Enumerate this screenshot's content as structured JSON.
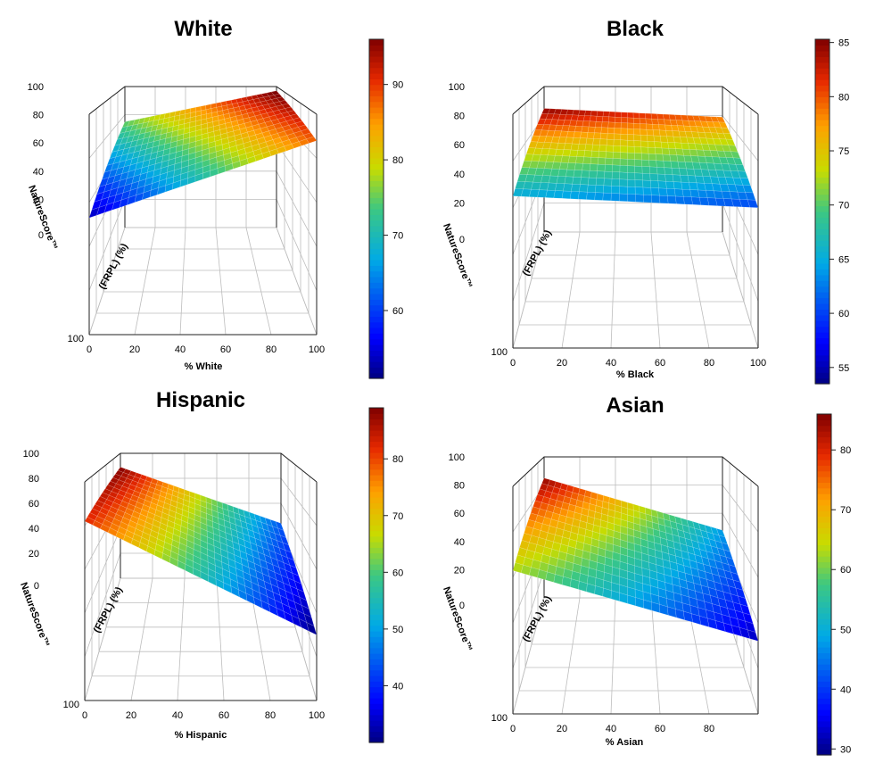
{
  "chart_data": [
    {
      "type": "surface3d",
      "title": "White",
      "xlabel": "% White",
      "ylabel": "(FRPL) (%)",
      "zlabel": "NatureScore™",
      "x_ticks": [
        "0",
        "20",
        "40",
        "60",
        "80",
        "100"
      ],
      "y_ticks": [
        "100"
      ],
      "z_ticks": [
        "0",
        "20",
        "40",
        "60",
        "80",
        "100"
      ],
      "corner_z": {
        "x0_near": 53,
        "x100_near": 88,
        "x0_far": 75,
        "x100_far": 97
      },
      "colorbar": {
        "min": 51,
        "max": 96,
        "ticks": [
          60,
          70,
          80,
          90
        ]
      }
    },
    {
      "type": "surface3d",
      "title": "Black",
      "xlabel": "% Black",
      "ylabel": "(FRPL) (%)",
      "zlabel": "NatureScore™",
      "x_ticks": [
        "0",
        "20",
        "40",
        "60",
        "80",
        "100"
      ],
      "y_ticks": [
        "100"
      ],
      "z_ticks": [
        "0",
        "20",
        "40",
        "60",
        "80",
        "100"
      ],
      "corner_z": {
        "x0_near": 65,
        "x100_near": 60,
        "x0_far": 85,
        "x100_far": 79
      },
      "colorbar": {
        "min": 53.5,
        "max": 85.3,
        "ticks": [
          55,
          60,
          65,
          70,
          75,
          80,
          85
        ]
      }
    },
    {
      "type": "surface3d",
      "title": "Hispanic",
      "xlabel": "% Hispanic",
      "ylabel": "(FRPL) (%)",
      "zlabel": "NatureScore™",
      "x_ticks": [
        "0",
        "20",
        "40",
        "60",
        "80",
        "100"
      ],
      "y_ticks": [
        "100"
      ],
      "z_ticks": [
        "0",
        "20",
        "40",
        "60",
        "80",
        "100"
      ],
      "corner_z": {
        "x0_near": 82,
        "x100_near": 30,
        "x0_far": 89,
        "x100_far": 44
      },
      "colorbar": {
        "min": 30,
        "max": 89,
        "ticks": [
          40,
          50,
          60,
          70,
          80
        ]
      }
    },
    {
      "type": "surface3d",
      "title": "Asian",
      "xlabel": "% Asian",
      "ylabel": "(FRPL) (%)",
      "zlabel": "NatureScore™",
      "x_ticks": [
        "0",
        "20",
        "40",
        "60",
        "80"
      ],
      "y_ticks": [
        "100"
      ],
      "z_ticks": [
        "0",
        "20",
        "40",
        "60",
        "80",
        "100"
      ],
      "corner_z": {
        "x0_near": 63,
        "x100_near": 32,
        "x0_far": 85,
        "x100_far": 48
      },
      "colorbar": {
        "min": 29,
        "max": 86,
        "ticks": [
          30,
          40,
          50,
          60,
          70,
          80
        ]
      }
    }
  ]
}
